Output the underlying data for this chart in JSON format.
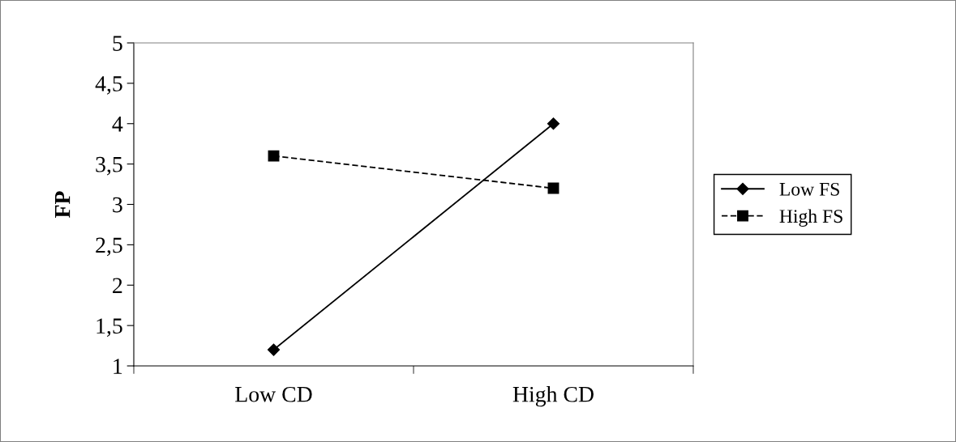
{
  "chart_data": {
    "type": "line",
    "ylabel": "FP",
    "categories": [
      "Low CD",
      "High CD"
    ],
    "series": [
      {
        "name": "Low FS",
        "color": "#000000",
        "values": [
          1.2,
          4.0
        ],
        "marker": "diamond",
        "line_style": "solid"
      },
      {
        "name": "High FS",
        "color": "#000000",
        "values": [
          3.6,
          3.2
        ],
        "marker": "square",
        "line_style": "dashed"
      }
    ],
    "ylim": [
      1,
      5
    ],
    "yticks": [
      1,
      {
        "value": 1.5,
        "label": "1,5"
      },
      2,
      {
        "value": 2.5,
        "label": "2,5"
      },
      3,
      {
        "value": 3.5,
        "label": "3,5"
      },
      4,
      {
        "value": 4.5,
        "label": "4,5"
      },
      5
    ],
    "grid": false,
    "legend": "right"
  }
}
